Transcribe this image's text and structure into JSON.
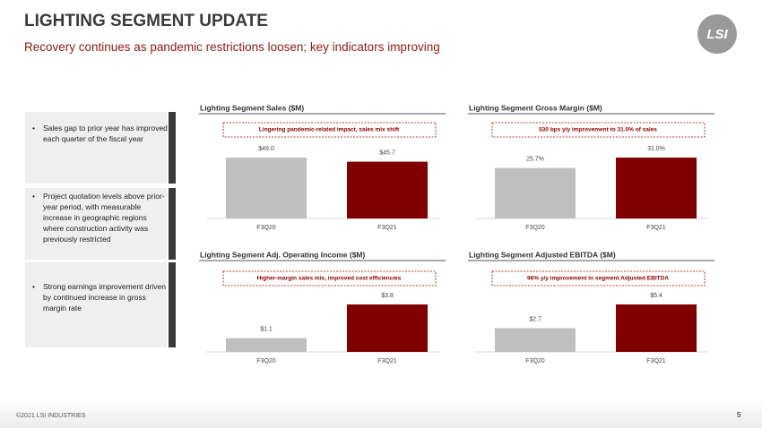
{
  "header": {
    "title": "LIGHTING SEGMENT UPDATE",
    "subtitle": "Recovery continues as pandemic restrictions loosen; key indicators improving",
    "logo": "LSI"
  },
  "bullets": [
    "Sales gap to prior year has improved each quarter of the fiscal year",
    "Project quotation levels above prior-year period, with measurable increase in geographic regions where construction activity was previously restricted",
    "Strong earnings improvement driven by continued increase in gross margin rate"
  ],
  "chart_data": [
    {
      "type": "bar",
      "title": "Lighting Segment Sales ($M)",
      "annotation": "Lingering pandemic-related impact, sales mix shift",
      "categories": [
        "F3Q20",
        "F3Q21"
      ],
      "values": [
        49.0,
        45.7
      ],
      "value_labels": [
        "$49.0",
        "$45.7"
      ],
      "colors": [
        "#bfbfbf",
        "#800000"
      ]
    },
    {
      "type": "bar",
      "title": "Lighting Segment Gross Margin ($M)",
      "annotation": "530 bps y/y improvement to 31.0% of sales",
      "categories": [
        "F3Q20",
        "F3Q21"
      ],
      "values": [
        25.7,
        31.0
      ],
      "value_labels": [
        "25.7%",
        "31.0%"
      ],
      "colors": [
        "#bfbfbf",
        "#800000"
      ]
    },
    {
      "type": "bar",
      "title": "Lighting Segment Adj. Operating Income ($M)",
      "annotation": "Higher-margin sales mix, improved cost efficiencies",
      "categories": [
        "F3Q20",
        "F3Q21"
      ],
      "values": [
        1.1,
        3.8
      ],
      "value_labels": [
        "$1.1",
        "$3.8"
      ],
      "colors": [
        "#bfbfbf",
        "#800000"
      ]
    },
    {
      "type": "bar",
      "title": "Lighting Segment Adjusted EBITDA ($M)",
      "annotation": "96% y/y improvement in segment Adjusted EBITDA",
      "categories": [
        "F3Q20",
        "F3Q21"
      ],
      "values": [
        2.7,
        5.4
      ],
      "value_labels": [
        "$2.7",
        "$5.4"
      ],
      "colors": [
        "#bfbfbf",
        "#800000"
      ]
    }
  ],
  "footer": {
    "copyright": "©2021 LSI INDUSTRIES",
    "page": "5"
  }
}
